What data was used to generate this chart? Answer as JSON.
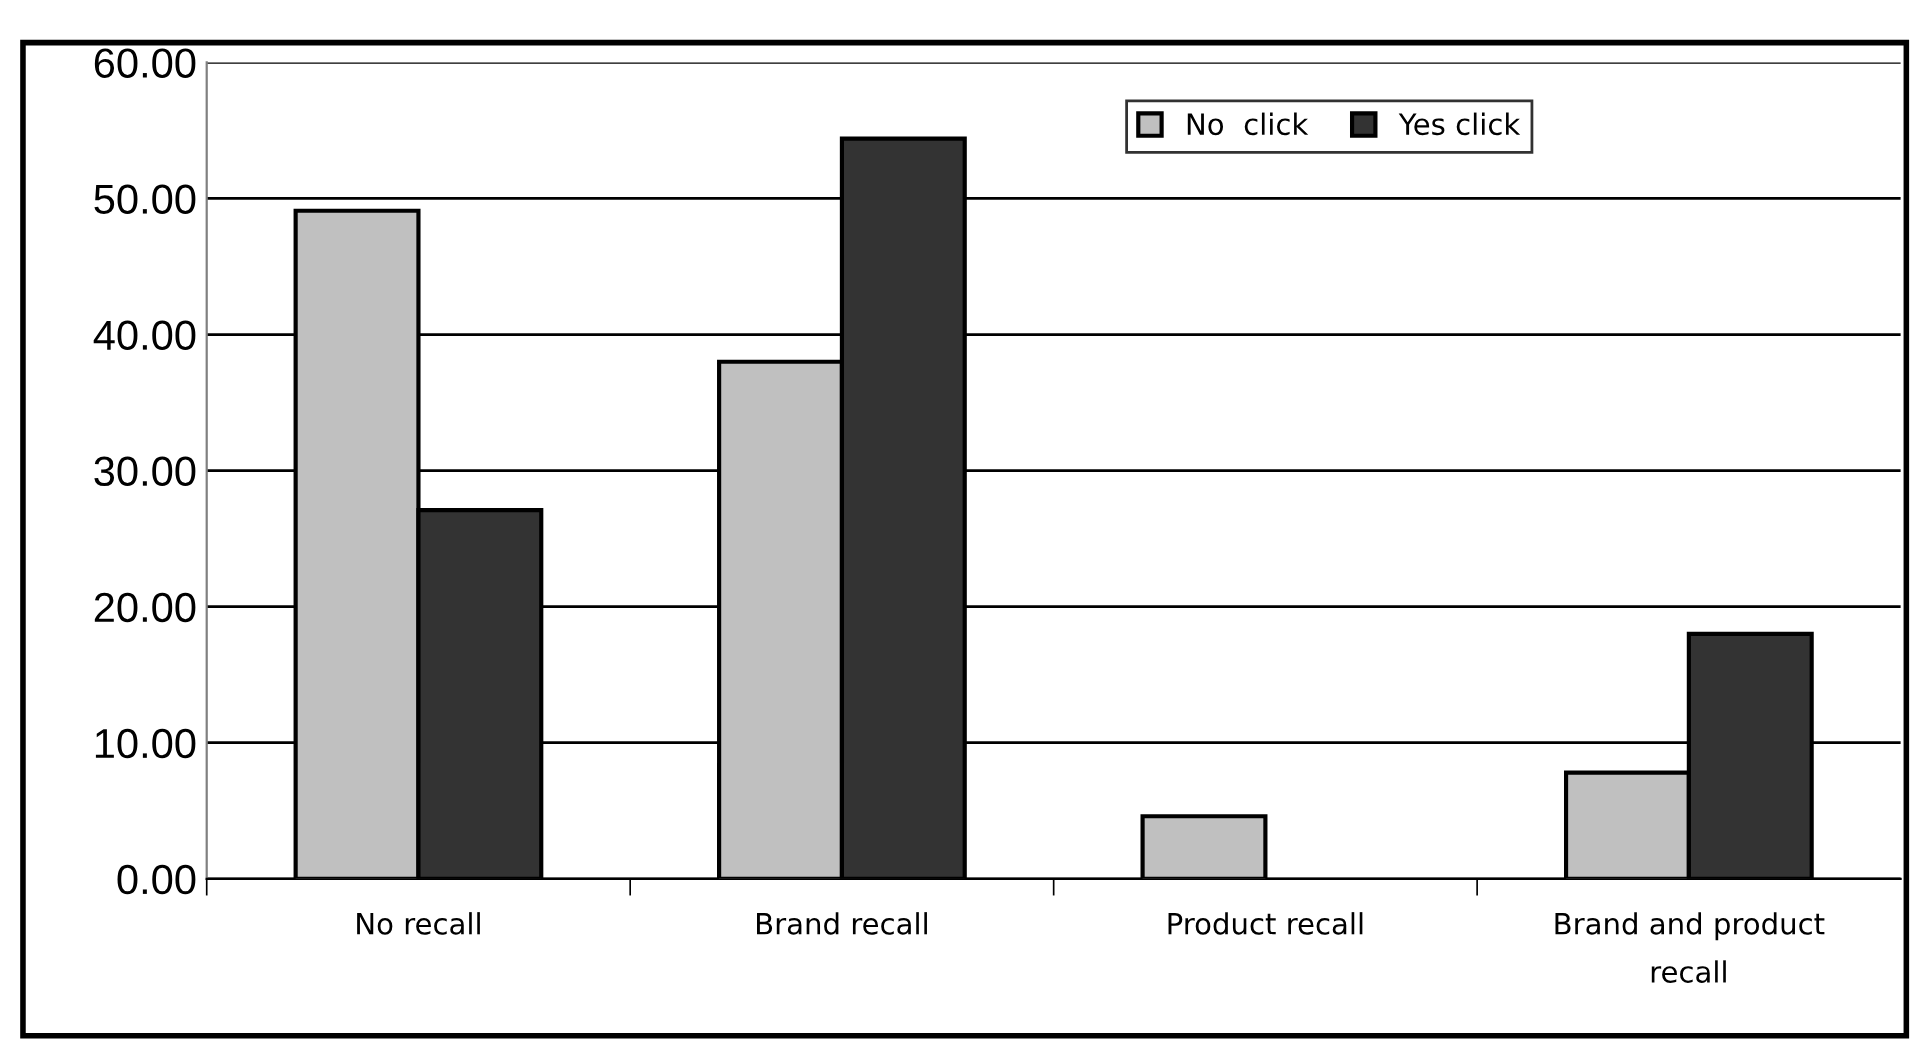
{
  "chart_data": {
    "type": "bar",
    "categories": [
      "No recall",
      "Brand recall",
      "Product recall",
      "Brand and product\nrecall"
    ],
    "series": [
      {
        "name": "No  click",
        "color": "#c0c0c0",
        "values": [
          49.1,
          38.0,
          4.6,
          7.8
        ]
      },
      {
        "name": "Yes click",
        "color": "#333333",
        "values": [
          27.1,
          54.4,
          null,
          18.0
        ]
      }
    ],
    "ylim": [
      0,
      60
    ],
    "yticks": [
      {
        "value": 0,
        "label": "0.00"
      },
      {
        "value": 10,
        "label": "10.00"
      },
      {
        "value": 20,
        "label": "20.00"
      },
      {
        "value": 30,
        "label": "30.00"
      },
      {
        "value": 40,
        "label": "40.00"
      },
      {
        "value": 50,
        "label": "50.00"
      },
      {
        "value": 60,
        "label": "60.00"
      }
    ],
    "grid": "y",
    "legend": "top right"
  }
}
